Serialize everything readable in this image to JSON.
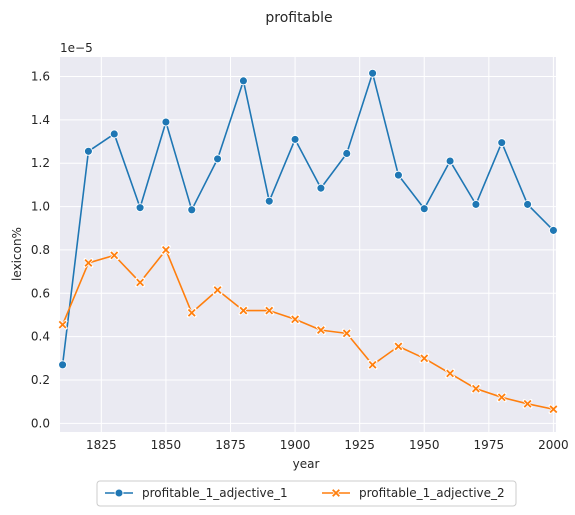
{
  "chart_data": {
    "type": "line",
    "title": "profitable",
    "xlabel": "year",
    "ylabel": "lexicon%",
    "y_multiplier_label": "1e−5",
    "xlim": [
      1809,
      2001
    ],
    "ylim": [
      -0.04,
      1.69
    ],
    "x_ticks": [
      1825,
      1850,
      1875,
      1900,
      1925,
      1950,
      1975,
      2000
    ],
    "x_tick_labels": [
      "1825",
      "1850",
      "1875",
      "1900",
      "1925",
      "1950",
      "1975",
      "2000"
    ],
    "y_ticks": [
      0.0,
      0.2,
      0.4,
      0.6,
      0.8,
      1.0,
      1.2,
      1.4,
      1.6
    ],
    "y_tick_labels": [
      "0.0",
      "0.2",
      "0.4",
      "0.6",
      "0.8",
      "1.0",
      "1.2",
      "1.4",
      "1.6"
    ],
    "grid": true,
    "legend_position": "bottom-center",
    "x": [
      1810,
      1820,
      1830,
      1840,
      1850,
      1860,
      1870,
      1880,
      1890,
      1900,
      1910,
      1920,
      1930,
      1940,
      1950,
      1960,
      1970,
      1980,
      1990,
      2000
    ],
    "series": [
      {
        "name": "profitable_1_adjective_1",
        "color": "#1f77b4",
        "marker": "circle",
        "values": [
          0.27,
          1.255,
          1.335,
          0.995,
          1.39,
          0.985,
          1.22,
          1.58,
          1.025,
          1.31,
          1.085,
          1.245,
          1.615,
          1.145,
          0.99,
          1.21,
          1.01,
          1.295,
          1.01,
          0.89
        ]
      },
      {
        "name": "profitable_1_adjective_2",
        "color": "#ff7f0e",
        "marker": "x",
        "values": [
          0.455,
          0.74,
          0.775,
          0.65,
          0.8,
          0.51,
          0.615,
          0.52,
          0.52,
          0.48,
          0.43,
          0.415,
          0.27,
          0.355,
          0.3,
          0.23,
          0.16,
          0.12,
          0.09,
          0.065
        ]
      }
    ]
  }
}
